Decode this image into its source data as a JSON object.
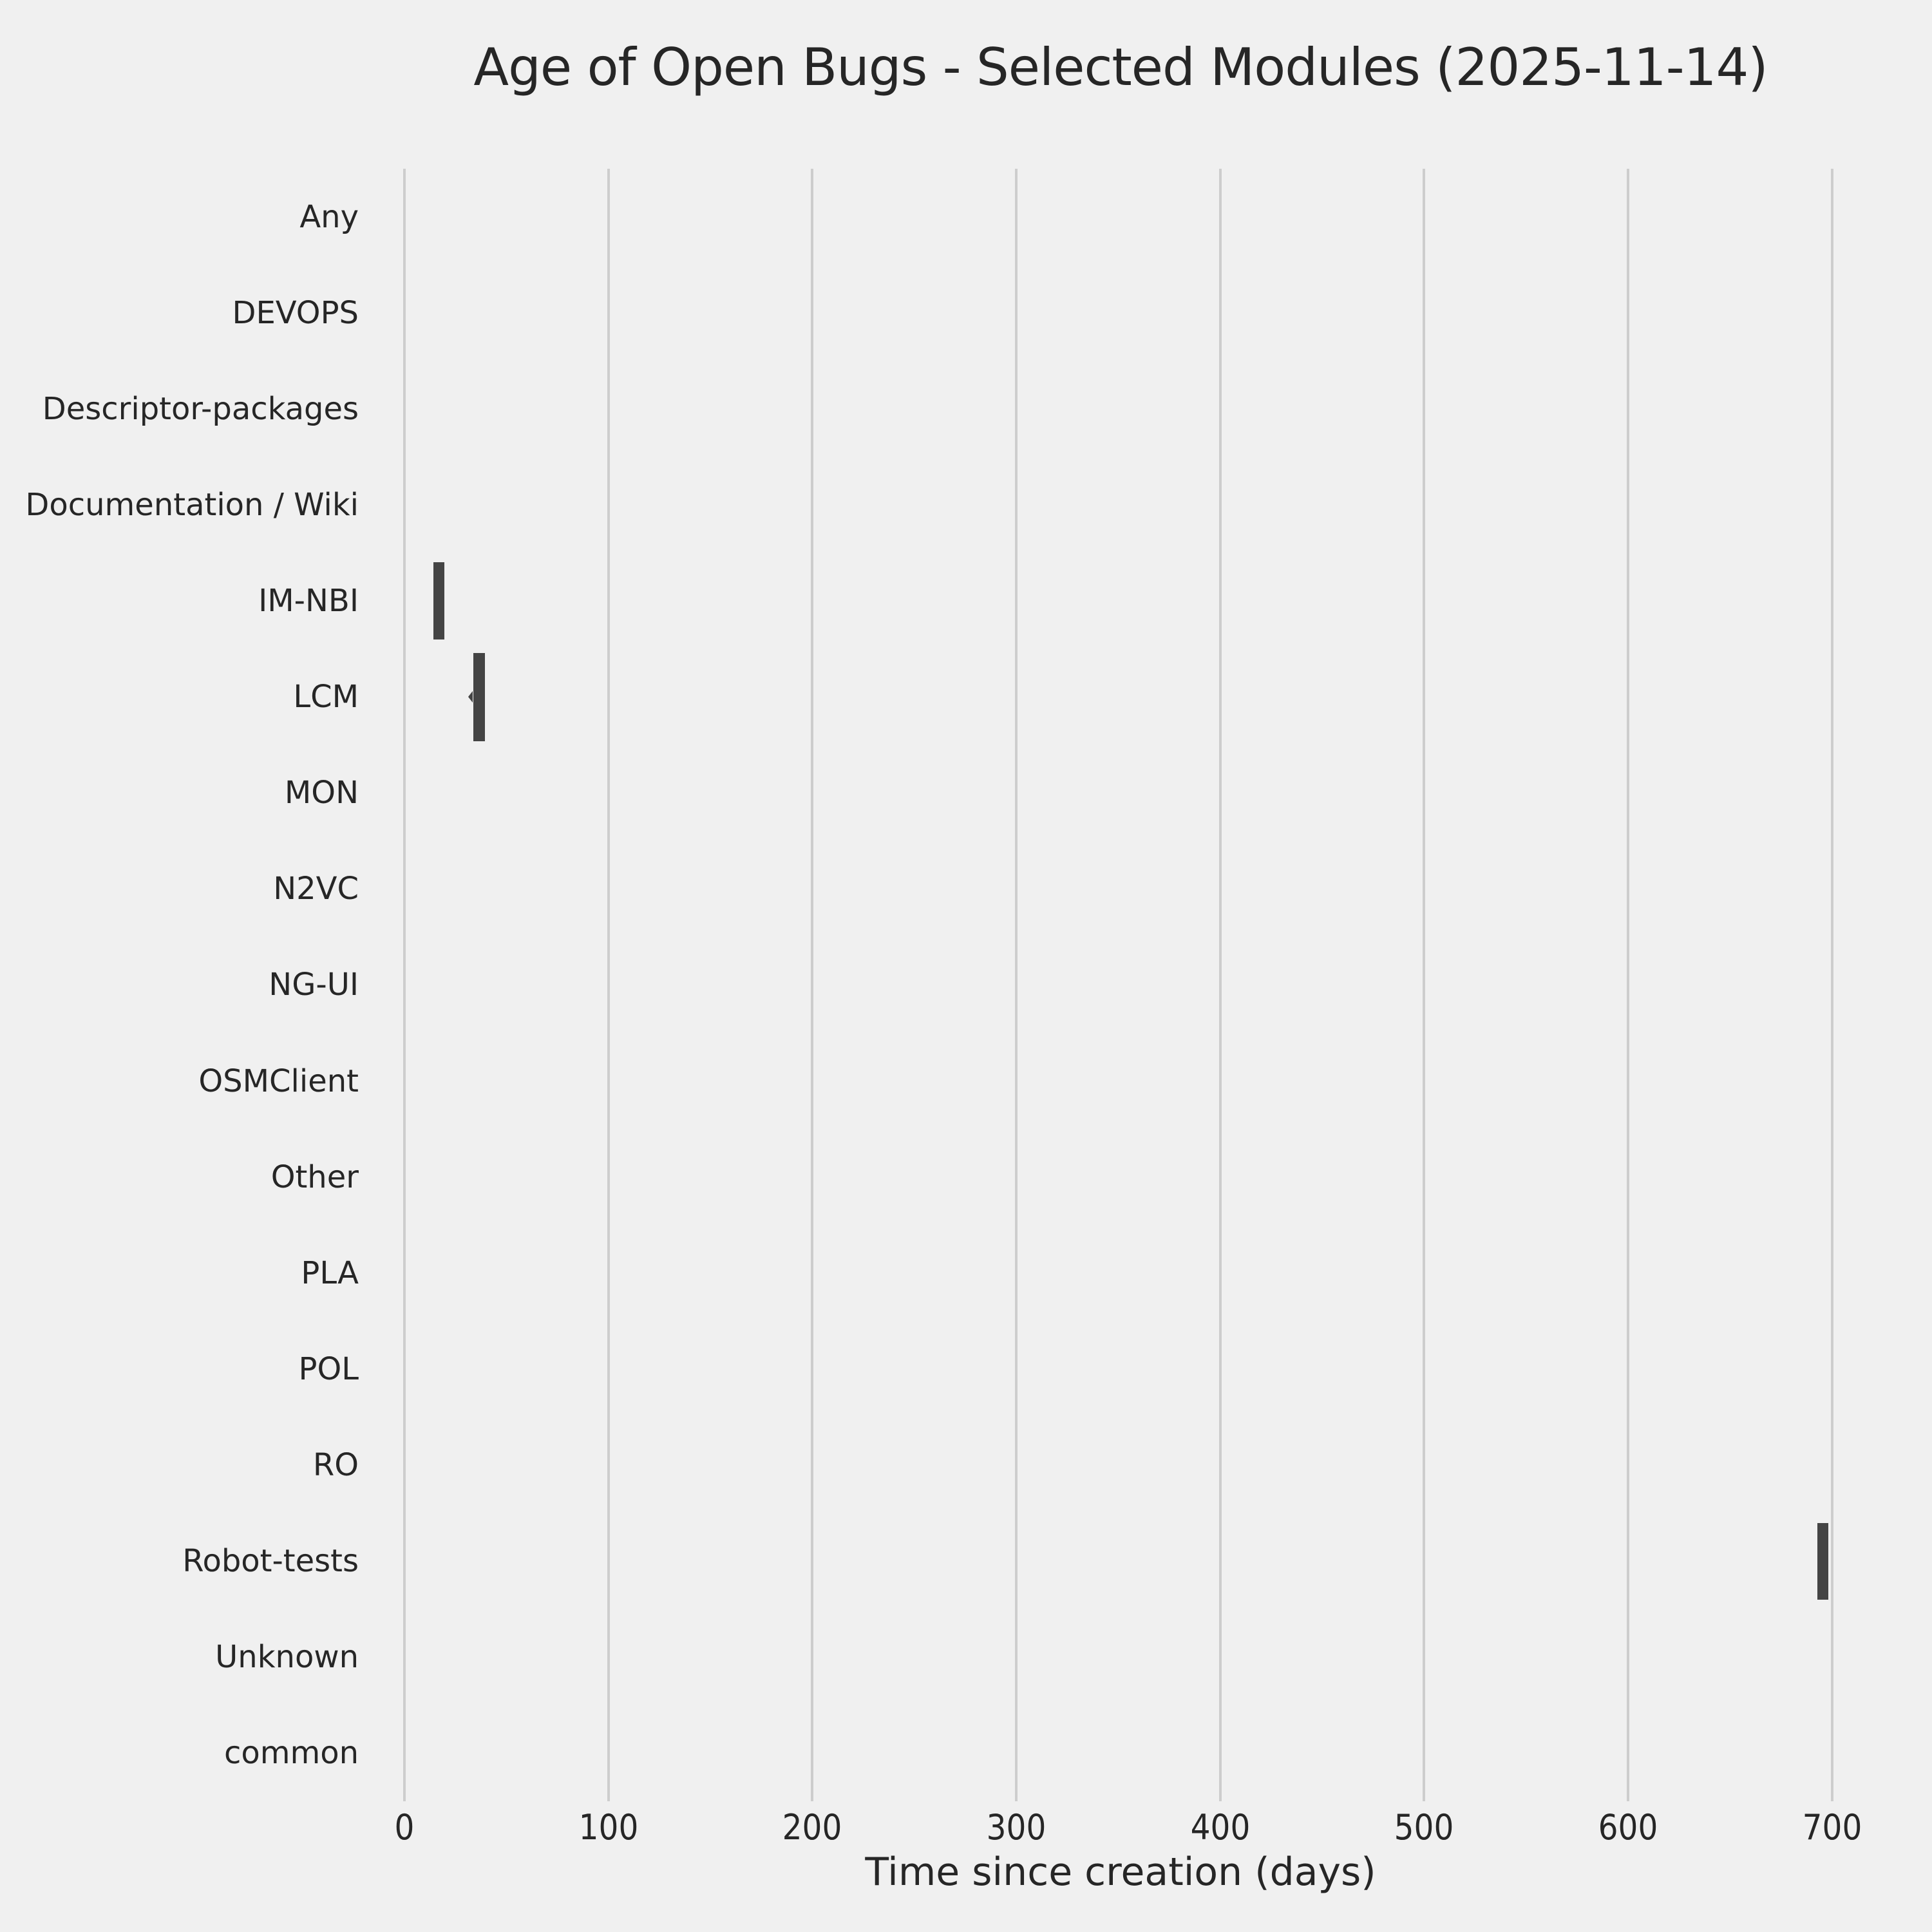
{
  "figure": {
    "title": "Age of Open Bugs - Selected Modules (2025-11-14)"
  },
  "chart_data": {
    "type": "violin",
    "orientation": "horizontal",
    "title": "Age of Open Bugs - Selected Modules (2025-11-14)",
    "xlabel": "Time since creation (days)",
    "ylabel": "",
    "categories": [
      "Any",
      "DEVOPS",
      "Descriptor-packages",
      "Documentation / Wiki",
      "IM-NBI",
      "LCM",
      "MON",
      "N2VC",
      "NG-UI",
      "OSMClient",
      "Other",
      "PLA",
      "POL",
      "RO",
      "Robot-tests",
      "Unknown",
      "common"
    ],
    "x_ticks": [
      0,
      100,
      200,
      300,
      400,
      500,
      600,
      700
    ],
    "xlim": [
      -13.6,
      715.9
    ],
    "grid": {
      "axis": "x",
      "visible": true
    },
    "legend": "none",
    "distributions": [
      {
        "module": "IM-NBI",
        "min_days": 14.2,
        "max_days": 19.6,
        "center_days": 17,
        "height_frac": 0.81,
        "notch_tip_days": null
      },
      {
        "module": "LCM",
        "min_days": 33.8,
        "max_days": 39.5,
        "center_days": 36.6,
        "height_frac": 0.92,
        "notch_tip_days": 31.3
      },
      {
        "module": "Robot-tests",
        "min_days": 692.7,
        "max_days": 698.1,
        "center_days": 695.4,
        "height_frac": 0.8,
        "notch_tip_days": null
      }
    ],
    "modules_without_marks": [
      "Any",
      "DEVOPS",
      "Descriptor-packages",
      "Documentation / Wiki",
      "MON",
      "N2VC",
      "NG-UI",
      "OSMClient",
      "Other",
      "PLA",
      "POL",
      "RO",
      "Unknown",
      "common"
    ],
    "colors": {
      "background": "#f0f0f0",
      "grid": "#cdcdcd",
      "violin": "#444444",
      "text": "#262626"
    }
  }
}
